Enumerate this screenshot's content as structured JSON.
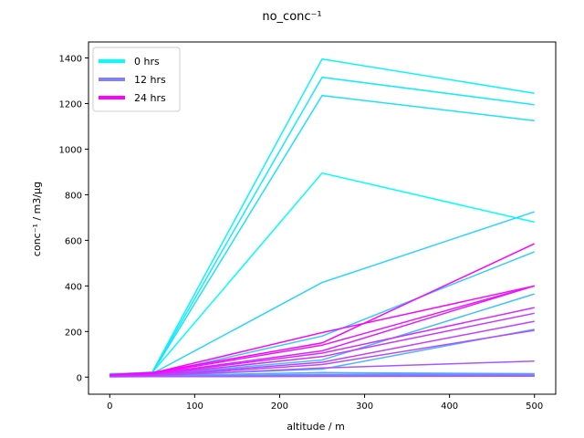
{
  "chart_data": {
    "type": "line",
    "title": "no_conc⁻¹",
    "xlabel": "altitude / m",
    "ylabel": "conc⁻¹ / m3/µg",
    "xlim": [
      -25,
      525
    ],
    "ylim": [
      -75,
      1470
    ],
    "xticks": [
      0,
      100,
      200,
      300,
      400,
      500
    ],
    "yticks": [
      0,
      200,
      400,
      600,
      800,
      1000,
      1200,
      1400
    ],
    "x": [
      0,
      50,
      250,
      500
    ],
    "grid": false,
    "legend_position": "upper-left",
    "legend": [
      {
        "label": "0 hrs",
        "color": "#00ffff"
      },
      {
        "label": "12 hrs",
        "color": "#8080ff"
      },
      {
        "label": "24 hrs",
        "color": "#ff00ff"
      }
    ],
    "series": [
      {
        "color": "#00ffff",
        "values": [
          10,
          20,
          895,
          680
        ]
      },
      {
        "color": "#0bf4ff",
        "values": [
          12,
          22,
          1395,
          1245
        ]
      },
      {
        "color": "#15eaff",
        "values": [
          14,
          20,
          1315,
          1195
        ]
      },
      {
        "color": "#20dfff",
        "values": [
          15,
          18,
          1235,
          1125
        ]
      },
      {
        "color": "#2bd4ff",
        "values": [
          12,
          15,
          415,
          725
        ]
      },
      {
        "color": "#35caff",
        "values": [
          10,
          12,
          180,
          550
        ]
      },
      {
        "color": "#40bfff",
        "values": [
          8,
          10,
          75,
          365
        ]
      },
      {
        "color": "#4bb4ff",
        "values": [
          6,
          8,
          35,
          210
        ]
      },
      {
        "color": "#55aaff",
        "values": [
          5,
          6,
          20,
          15
        ]
      },
      {
        "color": "#609fff",
        "values": [
          4,
          5,
          12,
          14
        ]
      },
      {
        "color": "#6a95ff",
        "values": [
          3,
          4,
          10,
          12
        ]
      },
      {
        "color": "#758aff",
        "values": [
          3,
          3,
          8,
          10
        ]
      },
      {
        "color": "#8080ff",
        "values": [
          2,
          3,
          6,
          8
        ]
      },
      {
        "color": "#8a75ff",
        "values": [
          2,
          2,
          5,
          6
        ]
      },
      {
        "color": "#956aff",
        "values": [
          2,
          2,
          4,
          5
        ]
      },
      {
        "color": "#9f60ff",
        "values": [
          1,
          2,
          3,
          4
        ]
      },
      {
        "color": "#aa55ff",
        "values": [
          3,
          5,
          40,
          70
        ]
      },
      {
        "color": "#b44bff",
        "values": [
          4,
          6,
          55,
          205
        ]
      },
      {
        "color": "#bf40ff",
        "values": [
          5,
          8,
          65,
          245
        ]
      },
      {
        "color": "#ca35ff",
        "values": [
          6,
          10,
          90,
          280
        ]
      },
      {
        "color": "#d42bff",
        "values": [
          7,
          12,
          105,
          305
        ]
      },
      {
        "color": "#df20ff",
        "values": [
          8,
          14,
          115,
          400
        ]
      },
      {
        "color": "#ea15ff",
        "values": [
          9,
          16,
          140,
          400
        ]
      },
      {
        "color": "#f40bff",
        "values": [
          10,
          18,
          195,
          400
        ]
      },
      {
        "color": "#ff00ff",
        "values": [
          11,
          20,
          150,
          585
        ]
      }
    ]
  }
}
